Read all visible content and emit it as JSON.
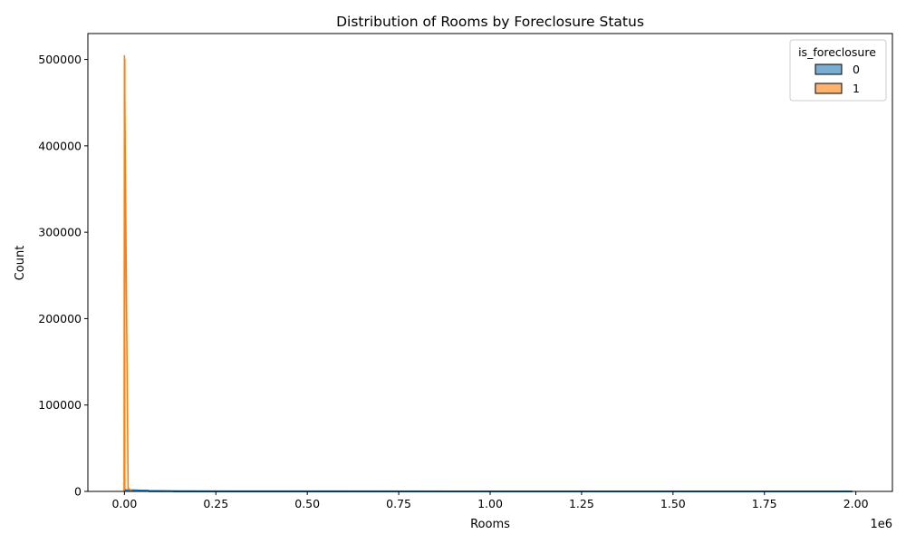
{
  "chart_data": {
    "type": "histogram",
    "title": "Distribution of Rooms by Foreclosure Status",
    "xlabel": "Rooms",
    "ylabel": "Count",
    "x_offset_label": "1e6",
    "xlim": [
      -100000,
      2100000
    ],
    "ylim": [
      0,
      530000
    ],
    "x_ticks": [
      {
        "value": 0,
        "label": "0.00"
      },
      {
        "value": 250000,
        "label": "0.25"
      },
      {
        "value": 500000,
        "label": "0.50"
      },
      {
        "value": 750000,
        "label": "0.75"
      },
      {
        "value": 1000000,
        "label": "1.00"
      },
      {
        "value": 1250000,
        "label": "1.25"
      },
      {
        "value": 1500000,
        "label": "1.50"
      },
      {
        "value": 1750000,
        "label": "1.75"
      },
      {
        "value": 2000000,
        "label": "2.00"
      }
    ],
    "y_ticks": [
      {
        "value": 0,
        "label": "0"
      },
      {
        "value": 100000,
        "label": "100000"
      },
      {
        "value": 200000,
        "label": "200000"
      },
      {
        "value": 300000,
        "label": "300000"
      },
      {
        "value": 400000,
        "label": "400000"
      },
      {
        "value": 500000,
        "label": "500000"
      }
    ],
    "legend": {
      "title": "is_foreclosure",
      "placement": "top-right",
      "entries": [
        {
          "label": "0",
          "color": "#1f77b4"
        },
        {
          "label": "1",
          "color": "#ff7f0e"
        }
      ]
    },
    "series": [
      {
        "name": "0",
        "color": "#1f77b4",
        "fill_opacity": 0.6,
        "bars": [
          {
            "x0": 0,
            "x1": 67000,
            "count": 1500
          },
          {
            "x0": 67000,
            "x1": 134000,
            "count": 400
          },
          {
            "x0": 134000,
            "x1": 1990000,
            "count": 150
          }
        ],
        "kde": [
          [
            0,
            1800
          ],
          [
            30000,
            1500
          ],
          [
            67000,
            900
          ],
          [
            150000,
            500
          ],
          [
            400000,
            300
          ],
          [
            1000000,
            250
          ],
          [
            1990000,
            200
          ]
        ]
      },
      {
        "name": "1",
        "color": "#ff7f0e",
        "fill_opacity": 0.6,
        "bars": [
          {
            "x0": 0,
            "x1": 2000,
            "count": 500000
          }
        ],
        "kde": [
          [
            -1000,
            0
          ],
          [
            0,
            505000
          ],
          [
            5000,
            250000
          ],
          [
            10000,
            4000
          ],
          [
            20000,
            0
          ]
        ]
      }
    ]
  }
}
